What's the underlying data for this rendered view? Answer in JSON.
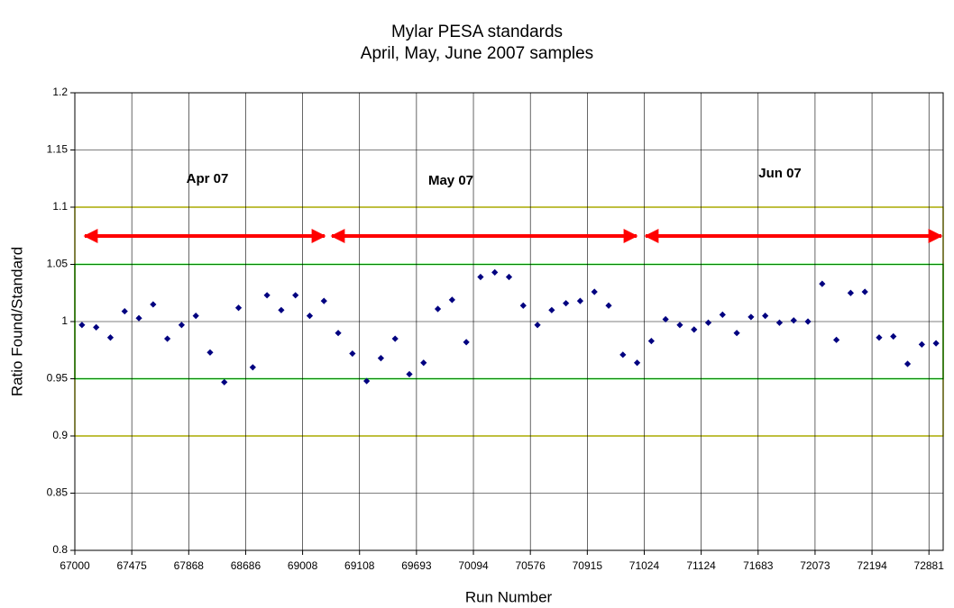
{
  "chart_data": {
    "type": "scatter",
    "title": "Mylar PESA standards",
    "subtitle": "April, May, June 2007 samples",
    "x_label": "Run Number",
    "y_label": "Ratio Found/Standard",
    "categories": [
      "67000",
      null,
      null,
      null,
      "67475",
      null,
      null,
      null,
      "67868",
      null,
      null,
      null,
      "68686",
      null,
      null,
      null,
      "69008",
      null,
      null,
      null,
      "69108",
      null,
      null,
      null,
      "69693",
      null,
      null,
      null,
      "70094",
      null,
      null,
      null,
      "70576",
      null,
      null,
      null,
      "70915",
      null,
      null,
      null,
      "71024",
      null,
      null,
      null,
      "71124",
      null,
      null,
      null,
      "71683",
      null,
      null,
      null,
      "72073",
      null,
      null,
      null,
      "72194",
      null,
      null,
      null,
      "72881"
    ],
    "values": [
      0.997,
      0.995,
      0.986,
      1.009,
      1.003,
      1.015,
      0.985,
      0.997,
      1.005,
      0.973,
      0.947,
      1.012,
      0.96,
      1.023,
      1.01,
      1.023,
      1.005,
      1.018,
      0.99,
      0.972,
      0.948,
      0.968,
      0.985,
      0.954,
      0.964,
      1.011,
      1.019,
      0.982,
      1.039,
      1.043,
      1.039,
      1.014,
      0.997,
      1.01,
      1.016,
      1.018,
      1.026,
      1.014,
      0.971,
      0.964,
      0.983,
      1.002,
      0.997,
      0.993,
      0.999,
      1.006,
      0.99,
      1.004,
      1.005,
      0.999,
      1.001,
      1.0,
      1.033,
      0.984,
      1.025,
      1.026,
      0.986,
      0.987,
      0.963,
      0.98,
      0.981
    ],
    "color": "#000080",
    "ylim": [
      0.8,
      1.2
    ],
    "yticks": [
      0.8,
      0.85,
      0.9,
      0.95,
      1,
      1.05,
      1.1,
      1.15,
      1.2
    ],
    "grid": true,
    "bands": [
      {
        "range": [
          0.9,
          1.1
        ],
        "color": "#ffff00"
      },
      {
        "range": [
          0.95,
          1.05
        ],
        "color": "#00ff00"
      }
    ],
    "annotations": [
      "Apr 07",
      "May 07",
      "Jun 07"
    ]
  }
}
